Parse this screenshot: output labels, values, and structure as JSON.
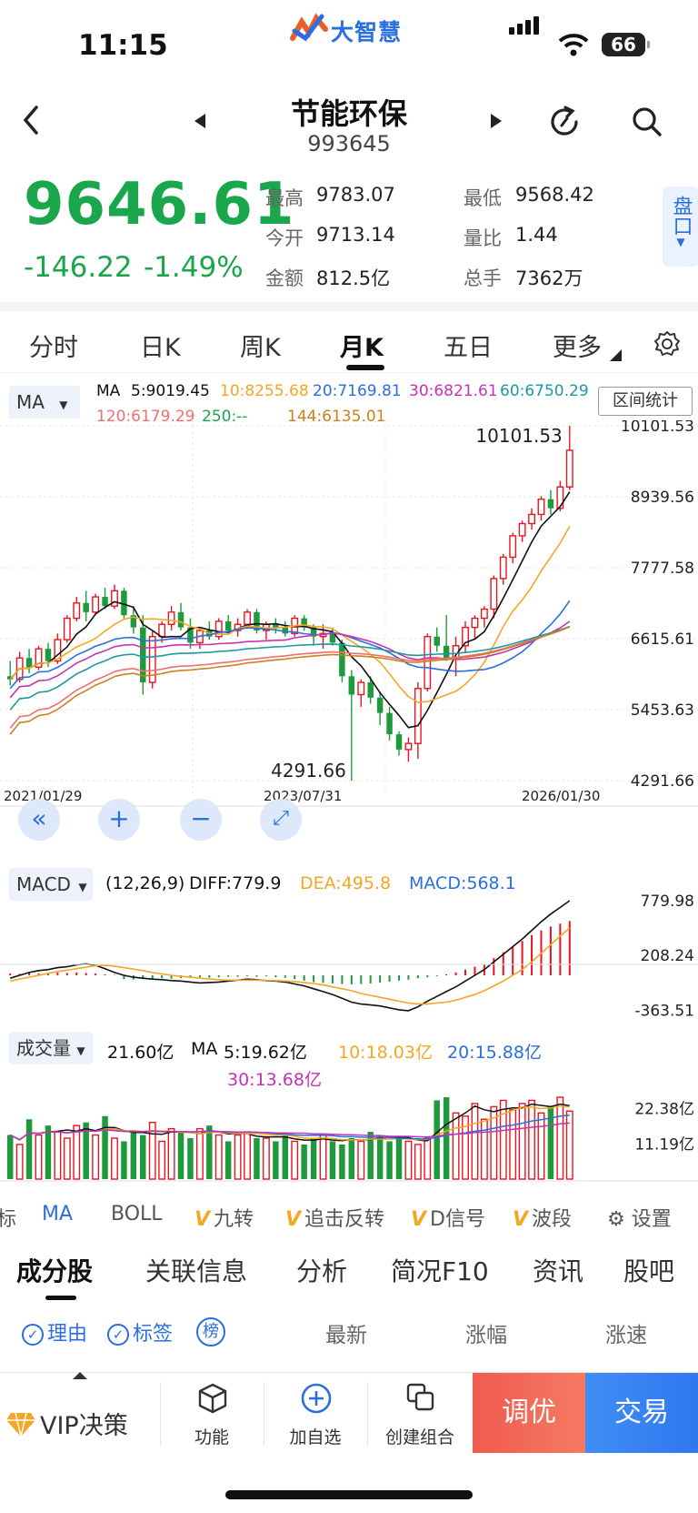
{
  "status": {
    "time": "11:15",
    "battery": "66",
    "brand": "大智慧"
  },
  "header": {
    "title": "节能环保",
    "code": "993645"
  },
  "quote": {
    "price": "9646.61",
    "change": "-146.22",
    "change_pct": "-1.49%",
    "high_label": "最高",
    "high": "9783.07",
    "low_label": "最低",
    "low": "9568.42",
    "open_label": "今开",
    "open": "9713.14",
    "vol_ratio_label": "量比",
    "vol_ratio": "1.44",
    "amount_label": "金额",
    "amount": "812.5亿",
    "hands_label": "总手",
    "hands": "7362万",
    "pankou": "盘口"
  },
  "period_tabs": [
    "分时",
    "日K",
    "周K",
    "月K",
    "五日",
    "更多"
  ],
  "main_chart": {
    "indicator": "MA",
    "legend": {
      "ma_label": "MA",
      "ma5": "5:9019.45",
      "ma10": "10:8255.68",
      "ma20": "20:7169.81",
      "ma30": "30:6821.61",
      "ma60": "60:6750.29",
      "ma120": "120:6179.29",
      "ma250": "250:--",
      "ma144": "144:6135.01"
    },
    "range_button": "区间统计",
    "y_ticks": [
      "10101.53",
      "8939.56",
      "7777.58",
      "6615.61",
      "5453.63",
      "4291.66"
    ],
    "dates": [
      "2021/01/29",
      "2023/07/31",
      "2026/01/30"
    ],
    "max_label": "10101.53",
    "min_label": "4291.66",
    "colors": {
      "up": "#e8141e",
      "down": "#1e9a3c",
      "ma5": "#111111",
      "ma10": "#f5a623",
      "ma20": "#2a6fe0",
      "ma30": "#c632b4",
      "ma60": "#1a9aa0",
      "ma120": "#f06e6e",
      "ma144": "#c8821e"
    }
  },
  "macd": {
    "indicator": "MACD",
    "params": "(12,26,9)",
    "diff": "DIFF:779.9",
    "dea": "DEA:495.8",
    "macd": "MACD:568.1",
    "y_ticks": [
      "779.98",
      "208.24",
      "-363.51"
    ]
  },
  "volume": {
    "indicator": "成交量",
    "value": "21.60亿",
    "ma_label": "MA",
    "ma5": "5:19.62亿",
    "ma10": "10:18.03亿",
    "ma20": "20:15.88亿",
    "ma30": "30:13.68亿",
    "y_ticks": [
      "22.38亿",
      "11.19亿"
    ]
  },
  "indicator_bar": {
    "items": [
      "标",
      "MA",
      "BOLL",
      "九转",
      "追击反转",
      "D信号",
      "波段"
    ],
    "settings": "设置"
  },
  "sub_tabs": [
    "成分股",
    "关联信息",
    "分析",
    "简况F10",
    "资讯",
    "股吧"
  ],
  "filters": {
    "reason": "理由",
    "tag": "标签",
    "rank": "榜"
  },
  "columns": [
    "最新",
    "涨幅",
    "涨速"
  ],
  "bottom_bar": {
    "vip": "VIP决策",
    "func": "功能",
    "add": "加自选",
    "combo": "创建组合",
    "tune": "调优",
    "trade": "交易"
  },
  "chart_data": {
    "type": "candlestick",
    "period": "monthly",
    "x_range": [
      "2021/01/29",
      "2026/01/30"
    ],
    "ylim": [
      4291.66,
      10101.53
    ],
    "ohlc": [
      [
        6000,
        6250,
        5850,
        5950
      ],
      [
        5950,
        6400,
        5900,
        6300
      ],
      [
        6300,
        6450,
        6050,
        6150
      ],
      [
        6150,
        6500,
        6100,
        6450
      ],
      [
        6450,
        6550,
        6150,
        6250
      ],
      [
        6250,
        6700,
        6200,
        6600
      ],
      [
        6600,
        7000,
        6550,
        6950
      ],
      [
        6950,
        7300,
        6900,
        7200
      ],
      [
        7200,
        7400,
        6900,
        7050
      ],
      [
        7050,
        7350,
        7000,
        7300
      ],
      [
        7300,
        7450,
        7100,
        7150
      ],
      [
        7150,
        7500,
        7100,
        7400
      ],
      [
        7400,
        7450,
        6950,
        7000
      ],
      [
        7000,
        7150,
        6700,
        6800
      ],
      [
        6800,
        7000,
        5700,
        5900
      ],
      [
        5900,
        6750,
        5800,
        6650
      ],
      [
        6650,
        6900,
        6550,
        6850
      ],
      [
        6850,
        7150,
        6750,
        7050
      ],
      [
        7050,
        7200,
        6750,
        6800
      ],
      [
        6800,
        6950,
        6450,
        6550
      ],
      [
        6550,
        6800,
        6450,
        6750
      ],
      [
        6750,
        6900,
        6600,
        6650
      ],
      [
        6650,
        6950,
        6600,
        6900
      ],
      [
        6900,
        7000,
        6700,
        6750
      ],
      [
        6750,
        6950,
        6650,
        6850
      ],
      [
        6850,
        7100,
        6800,
        7050
      ],
      [
        7050,
        7100,
        6700,
        6750
      ],
      [
        6750,
        6900,
        6600,
        6850
      ],
      [
        6850,
        6950,
        6700,
        6800
      ],
      [
        6800,
        6900,
        6650,
        6700
      ],
      [
        6700,
        7000,
        6650,
        6950
      ],
      [
        6950,
        7000,
        6750,
        6800
      ],
      [
        6800,
        6850,
        6500,
        6650
      ],
      [
        6650,
        6850,
        6450,
        6700
      ],
      [
        6700,
        6800,
        6500,
        6550
      ],
      [
        6550,
        6600,
        5900,
        6000
      ],
      [
        6000,
        6100,
        4291.66,
        5700
      ],
      [
        5700,
        5950,
        5500,
        5900
      ],
      [
        5900,
        6000,
        5550,
        5650
      ],
      [
        5650,
        5750,
        5200,
        5400
      ],
      [
        5400,
        5500,
        4950,
        5050
      ],
      [
        5050,
        5100,
        4700,
        4800
      ],
      [
        4800,
        5000,
        4600,
        4900
      ],
      [
        4900,
        5900,
        4650,
        5800
      ],
      [
        5800,
        6700,
        5750,
        6650
      ],
      [
        6650,
        6800,
        6400,
        6500
      ],
      [
        6500,
        7000,
        6250,
        6300
      ],
      [
        6300,
        6650,
        6000,
        6500
      ],
      [
        6500,
        6900,
        6400,
        6800
      ],
      [
        6800,
        7000,
        6600,
        6950
      ],
      [
        6950,
        7150,
        6800,
        7100
      ],
      [
        7100,
        7650,
        6950,
        7600
      ],
      [
        7600,
        8000,
        7500,
        7950
      ],
      [
        7950,
        8350,
        7850,
        8300
      ],
      [
        8300,
        8550,
        8200,
        8500
      ],
      [
        8500,
        8750,
        8400,
        8650
      ],
      [
        8650,
        8950,
        8550,
        8900
      ],
      [
        8900,
        9050,
        8650,
        8750
      ],
      [
        8750,
        9200,
        8700,
        9100
      ],
      [
        9100,
        10101.53,
        9050,
        9700
      ]
    ],
    "volume_yi": [
      14,
      11,
      19,
      14,
      17,
      15,
      13,
      17,
      18,
      14,
      20,
      13,
      12,
      15,
      14,
      18,
      12,
      16,
      15,
      13,
      16,
      17,
      14,
      12,
      14,
      15,
      13,
      13,
      12,
      14,
      12,
      11,
      13,
      14,
      12,
      11,
      13,
      12,
      15,
      14,
      12,
      13,
      12,
      11,
      13,
      25,
      26,
      21,
      20,
      24,
      19,
      23,
      25,
      22,
      24,
      25,
      21,
      23,
      26,
      21.6
    ],
    "macd_hist": [
      20,
      15,
      25,
      20,
      25,
      30,
      25,
      30,
      25,
      20,
      10,
      5,
      -40,
      -45,
      -40,
      -35,
      -30,
      -35,
      -30,
      -25,
      -20,
      -25,
      -20,
      -15,
      -15,
      -10,
      -15,
      -10,
      -20,
      -25,
      -40,
      -55,
      -70,
      -80,
      -85,
      -90,
      -95,
      -90,
      -85,
      -75,
      -65,
      -55,
      -45,
      -30,
      -20,
      -10,
      10,
      30,
      60,
      90,
      120,
      180,
      240,
      300,
      360,
      420,
      470,
      510,
      540,
      568.1
    ],
    "series": [
      {
        "name": "DIFF",
        "values": [
          -30,
          0,
          30,
          50,
          60,
          80,
          90,
          110,
          120,
          105,
          70,
          30,
          0,
          -20,
          -30,
          -40,
          -45,
          -55,
          -60,
          -70,
          -80,
          -75,
          -70,
          -60,
          -50,
          -40,
          -45,
          -55,
          -60,
          -70,
          -90,
          -110,
          -140,
          -170,
          -200,
          -240,
          -280,
          -300,
          -310,
          -320,
          -340,
          -360,
          -370,
          -330,
          -270,
          -220,
          -170,
          -120,
          -60,
          0,
          60,
          140,
          220,
          300,
          380,
          470,
          560,
          640,
          710,
          779.9
        ]
      },
      {
        "name": "DEA",
        "values": [
          -60,
          -40,
          -20,
          0,
          20,
          40,
          55,
          70,
          85,
          100,
          105,
          95,
          80,
          65,
          50,
          30,
          15,
          0,
          -10,
          -20,
          -30,
          -40,
          -45,
          -50,
          -50,
          -50,
          -50,
          -52,
          -55,
          -60,
          -65,
          -75,
          -85,
          -100,
          -120,
          -140,
          -160,
          -190,
          -210,
          -230,
          -250,
          -270,
          -290,
          -300,
          -300,
          -290,
          -280,
          -260,
          -230,
          -200,
          -160,
          -110,
          -60,
          0,
          60,
          140,
          230,
          320,
          410,
          495.8
        ]
      }
    ]
  }
}
